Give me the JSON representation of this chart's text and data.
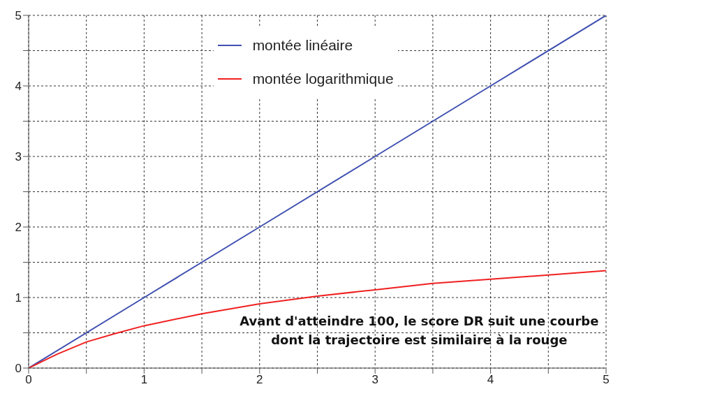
{
  "chart_data": {
    "type": "line",
    "x": [
      0,
      0.25,
      0.5,
      0.75,
      1,
      1.5,
      2,
      2.5,
      3,
      3.5,
      4,
      4.5,
      5
    ],
    "series": [
      {
        "name": "montée linéaire",
        "color": "#3f4fb0",
        "x": [
          0,
          1,
          2,
          3,
          4,
          5
        ],
        "values": [
          0,
          1,
          2,
          3,
          4,
          5
        ]
      },
      {
        "name": "montée logarithmique",
        "color": "#f02020",
        "values": [
          0,
          0.2,
          0.37,
          0.49,
          0.6,
          0.77,
          0.91,
          1.02,
          1.11,
          1.2,
          1.26,
          1.32,
          1.38
        ]
      }
    ],
    "xlim": [
      0,
      5
    ],
    "ylim": [
      0,
      5
    ],
    "xticks": [
      0,
      {
        "value": 0.5,
        "label": null
      },
      1,
      {
        "value": 1.5,
        "label": null
      },
      2,
      {
        "value": 2.5,
        "label": null
      },
      3,
      {
        "value": 3.5,
        "label": null
      },
      4,
      {
        "value": 4.5,
        "label": null
      },
      5
    ],
    "yticks": [
      0,
      {
        "value": 0.5,
        "label": null
      },
      1,
      {
        "value": 1.5,
        "label": null
      },
      2,
      {
        "value": 2.5,
        "label": null
      },
      3,
      {
        "value": 3.5,
        "label": null
      },
      4,
      {
        "value": 4.5,
        "label": null
      },
      5
    ],
    "grid": true,
    "legend": "top",
    "marker": "none",
    "line_style": "solid",
    "annotations": [
      "Avant d'atteindre 100, le score DR suit une courbe dont la trajectoire est similaire à la rouge"
    ]
  }
}
